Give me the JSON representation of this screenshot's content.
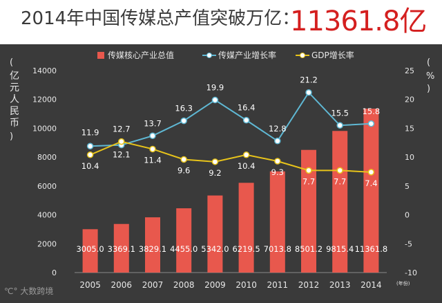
{
  "header": {
    "title": "2014年中国传媒总产值突破万亿：",
    "highlight": "11361.8亿"
  },
  "watermark": "大数跨境",
  "colors": {
    "bar": "#e8584d",
    "industry_line": "#5fb8d4",
    "gdp_line": "#e8c41a",
    "background": "#3a3a3a",
    "axis_text": "#e8e8e8",
    "title_red": "#d41f1f"
  },
  "chart_data": {
    "type": "bar",
    "categories": [
      "2005",
      "2006",
      "2007",
      "2008",
      "2009",
      "2010",
      "2011",
      "2012",
      "2013",
      "2014"
    ],
    "x_unit": "(年份)",
    "left_axis": {
      "label": "亿元人民币",
      "ylim": [
        0,
        14000
      ],
      "ticks": [
        0,
        2000,
        4000,
        6000,
        8000,
        10000,
        12000,
        14000
      ]
    },
    "right_axis": {
      "label": "%",
      "ylim": [
        -10,
        25
      ],
      "ticks": [
        -10,
        -5,
        0,
        5,
        10,
        15,
        20,
        25
      ]
    },
    "series": [
      {
        "name": "传媒核心产业总值",
        "type": "bar",
        "axis": "left",
        "values": [
          3005.0,
          3369.1,
          3829.1,
          4455.0,
          5342.0,
          6219.5,
          7013.8,
          8501.2,
          9815.4,
          11361.8
        ],
        "labels": [
          "3005.0",
          "3369.1",
          "3829.1",
          "4455.0",
          "5342.0",
          "6219.5",
          "7013.8",
          "8501.2",
          "9815.4",
          "11361.8"
        ]
      },
      {
        "name": "传媒产业增长率",
        "type": "line",
        "axis": "right",
        "values": [
          11.9,
          12.1,
          13.7,
          16.3,
          19.9,
          16.4,
          12.8,
          21.2,
          15.5,
          15.8
        ],
        "labels": [
          "11.9",
          "12.1",
          "13.7",
          "16.3",
          "19.9",
          "16.4",
          "12.8",
          "21.2",
          "15.5",
          "15.8"
        ]
      },
      {
        "name": "GDP增长率",
        "type": "line",
        "axis": "right",
        "values": [
          10.4,
          12.7,
          11.4,
          9.6,
          9.2,
          10.4,
          9.3,
          7.7,
          7.7,
          7.4
        ],
        "labels": [
          "10.4",
          "12.7",
          "11.4",
          "9.6",
          "9.2",
          "10.4",
          "9.3",
          "7.7",
          "7.7",
          "7.4"
        ]
      }
    ]
  }
}
